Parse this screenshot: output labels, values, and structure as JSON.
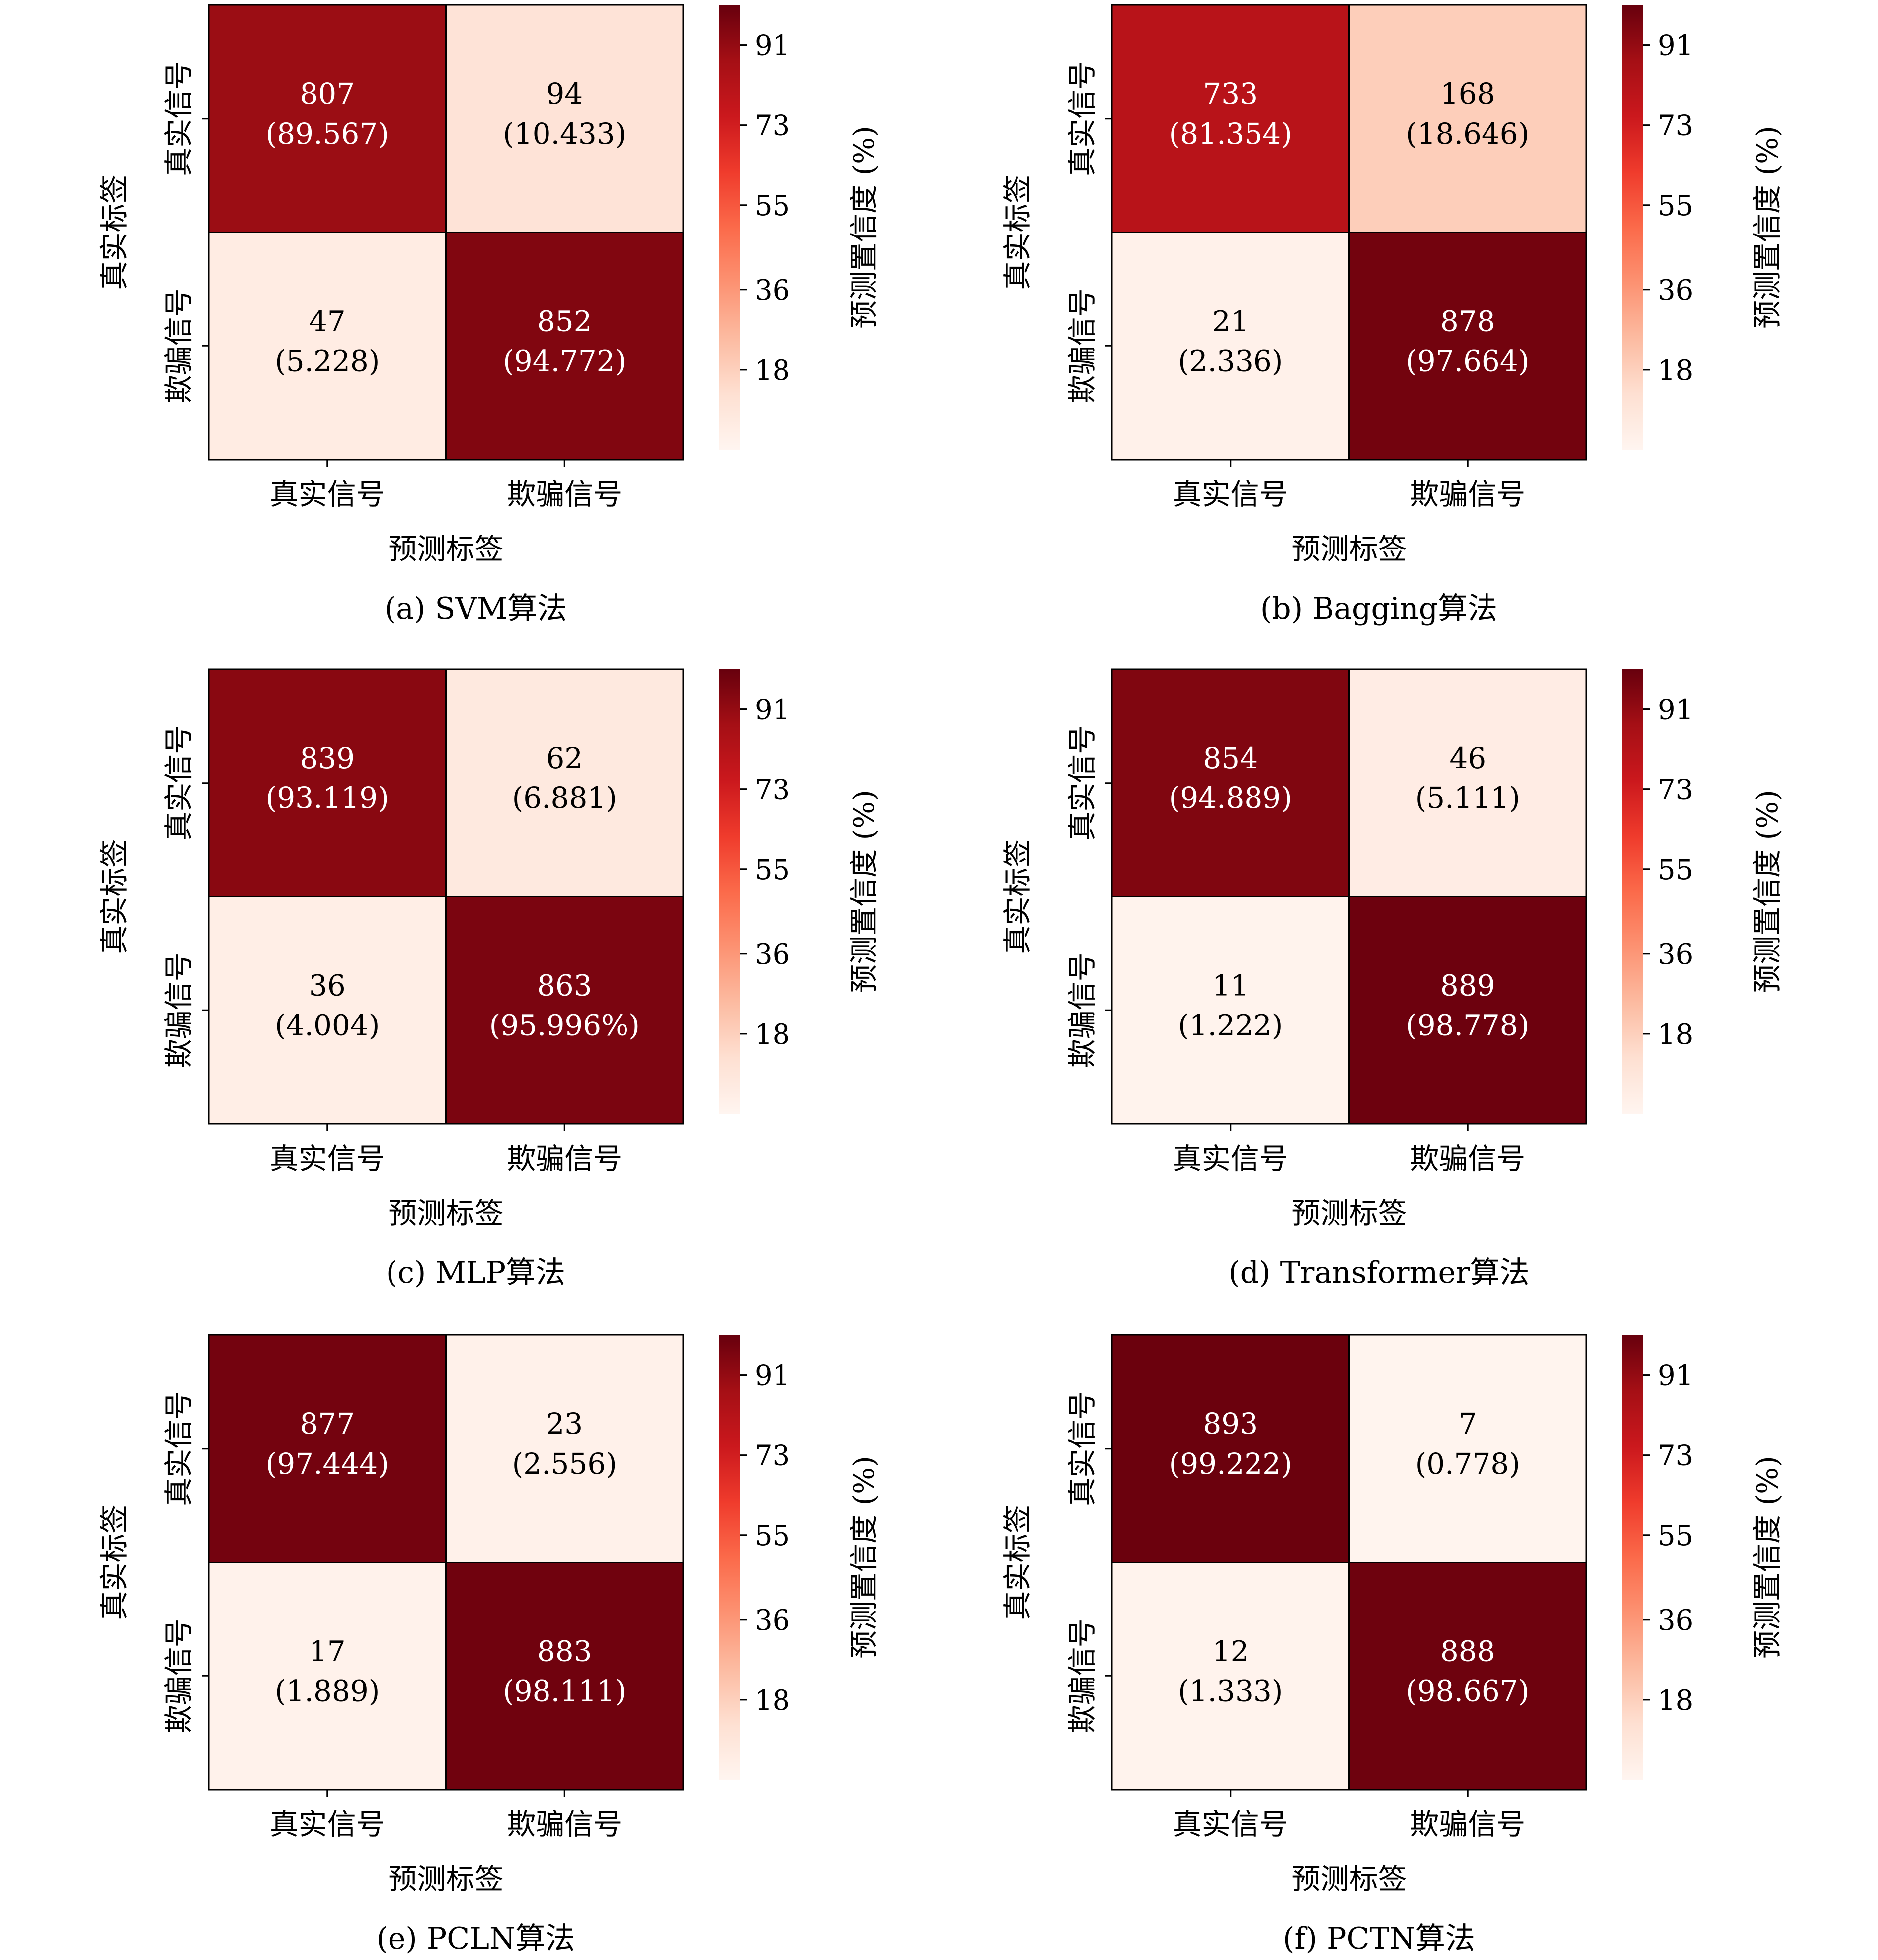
{
  "colorbar": {
    "label": "预测置信度 (%)",
    "ticks": [
      18,
      36,
      55,
      73,
      91
    ],
    "colormap": [
      "#fff5f0",
      "#fee0d2",
      "#fcbba1",
      "#fc9272",
      "#fb6a4a",
      "#ef3b2c",
      "#cb181d",
      "#a50f15",
      "#67000d"
    ]
  },
  "chart_data": [
    {
      "type": "heatmap",
      "caption": "(a) SVM算法",
      "xlabel": "预测标签",
      "ylabel": "真实标签",
      "x_categories": [
        "真实信号",
        "欺骗信号"
      ],
      "y_categories": [
        "真实信号",
        "欺骗信号"
      ],
      "counts": [
        [
          807,
          94
        ],
        [
          47,
          852
        ]
      ],
      "cell_labels": [
        [
          "(89.567)",
          "(10.433)"
        ],
        [
          "(5.228)",
          "(94.772)"
        ]
      ],
      "percentages": [
        [
          89.567,
          10.433
        ],
        [
          5.228,
          94.772
        ]
      ],
      "colorbar_range": [
        0,
        100
      ]
    },
    {
      "type": "heatmap",
      "caption": "(b) Bagging算法",
      "xlabel": "预测标签",
      "ylabel": "真实标签",
      "x_categories": [
        "真实信号",
        "欺骗信号"
      ],
      "y_categories": [
        "真实信号",
        "欺骗信号"
      ],
      "counts": [
        [
          733,
          168
        ],
        [
          21,
          878
        ]
      ],
      "cell_labels": [
        [
          "(81.354)",
          "(18.646)"
        ],
        [
          "(2.336)",
          "(97.664)"
        ]
      ],
      "percentages": [
        [
          81.354,
          18.646
        ],
        [
          2.336,
          97.664
        ]
      ],
      "colorbar_range": [
        0,
        100
      ]
    },
    {
      "type": "heatmap",
      "caption": "(c) MLP算法",
      "xlabel": "预测标签",
      "ylabel": "真实标签",
      "x_categories": [
        "真实信号",
        "欺骗信号"
      ],
      "y_categories": [
        "真实信号",
        "欺骗信号"
      ],
      "counts": [
        [
          839,
          62
        ],
        [
          36,
          863
        ]
      ],
      "cell_labels": [
        [
          "(93.119)",
          "(6.881)"
        ],
        [
          "(4.004)",
          "(95.996%)"
        ]
      ],
      "percentages": [
        [
          93.119,
          6.881
        ],
        [
          4.004,
          95.996
        ]
      ],
      "colorbar_range": [
        0,
        100
      ]
    },
    {
      "type": "heatmap",
      "caption": "(d) Transformer算法",
      "xlabel": "预测标签",
      "ylabel": "真实标签",
      "x_categories": [
        "真实信号",
        "欺骗信号"
      ],
      "y_categories": [
        "真实信号",
        "欺骗信号"
      ],
      "counts": [
        [
          854,
          46
        ],
        [
          11,
          889
        ]
      ],
      "cell_labels": [
        [
          "(94.889)",
          "(5.111)"
        ],
        [
          "(1.222)",
          "(98.778)"
        ]
      ],
      "percentages": [
        [
          94.889,
          5.111
        ],
        [
          1.222,
          98.778
        ]
      ],
      "colorbar_range": [
        0,
        100
      ]
    },
    {
      "type": "heatmap",
      "caption": "(e) PCLN算法",
      "xlabel": "预测标签",
      "ylabel": "真实标签",
      "x_categories": [
        "真实信号",
        "欺骗信号"
      ],
      "y_categories": [
        "真实信号",
        "欺骗信号"
      ],
      "counts": [
        [
          877,
          23
        ],
        [
          17,
          883
        ]
      ],
      "cell_labels": [
        [
          "(97.444)",
          "(2.556)"
        ],
        [
          "(1.889)",
          "(98.111)"
        ]
      ],
      "percentages": [
        [
          97.444,
          2.556
        ],
        [
          1.889,
          98.111
        ]
      ],
      "colorbar_range": [
        0,
        100
      ]
    },
    {
      "type": "heatmap",
      "caption": "(f) PCTN算法",
      "xlabel": "预测标签",
      "ylabel": "真实标签",
      "x_categories": [
        "真实信号",
        "欺骗信号"
      ],
      "y_categories": [
        "真实信号",
        "欺骗信号"
      ],
      "counts": [
        [
          893,
          7
        ],
        [
          12,
          888
        ]
      ],
      "cell_labels": [
        [
          "(99.222)",
          "(0.778)"
        ],
        [
          "(1.333)",
          "(98.667)"
        ]
      ],
      "percentages": [
        [
          99.222,
          0.778
        ],
        [
          1.333,
          98.667
        ]
      ],
      "colorbar_range": [
        0,
        100
      ]
    }
  ]
}
